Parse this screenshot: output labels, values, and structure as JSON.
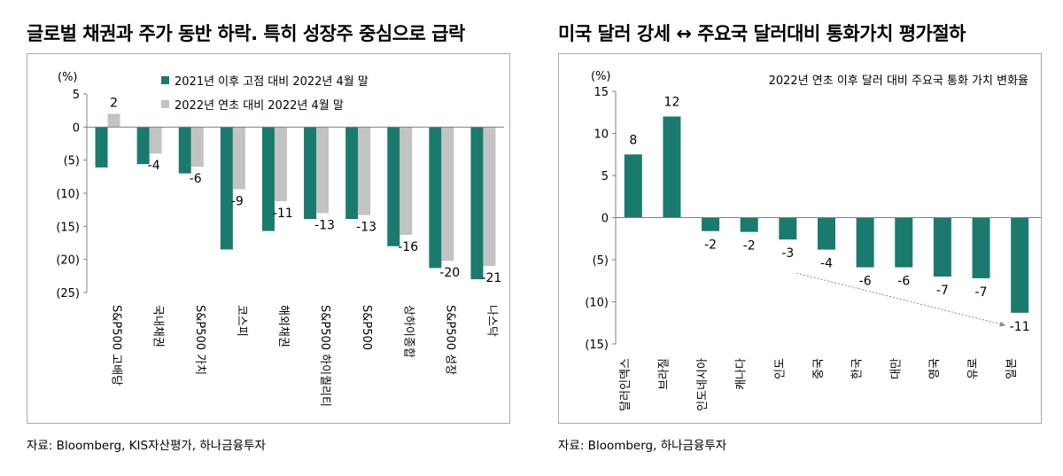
{
  "panels": [
    {
      "title": "글로벌 채권과 주가 동반 하락. 특히 성장주 중심으로 급락",
      "source": "자료: Bloomberg, KIS자산평가, 하나금융투자"
    },
    {
      "title": "미국 달러 강세 ↔ 주요국 달러대비 통화가치 평가절하",
      "source": "자료: Bloomberg, 하나금융투자"
    }
  ],
  "colors": {
    "teal": "#1b7a6e",
    "gray": "#c3c3c3",
    "axis": "#808080",
    "arrow": "#8c8c8c"
  },
  "chart_data": [
    {
      "type": "bar",
      "unit_label": "(%)",
      "ylim": [
        -25,
        5
      ],
      "yticks": [
        5,
        0,
        -5,
        -10,
        -15,
        -20,
        -25
      ],
      "ytick_labels": [
        "5",
        "0",
        "(5)",
        "(10)",
        "(15)",
        "(20)",
        "(25)"
      ],
      "categories": [
        "S&P500 고배당",
        "국내채권",
        "S&P500 가치",
        "코스피",
        "해외채권",
        "S&P500 하이퀄리티",
        "S&P500",
        "상하이종합",
        "S&P500 성장",
        "나스닥"
      ],
      "series": [
        {
          "name": "2021년 이후 고점 대비 2022년 4월 말",
          "color": "#1b7a6e",
          "values": [
            -6.1,
            -5.6,
            -7.0,
            -18.5,
            -15.7,
            -13.9,
            -13.9,
            -18.0,
            -21.3,
            -23.0
          ]
        },
        {
          "name": "2022년 연초 대비 2022년 4월 말",
          "color": "#c3c3c3",
          "values": [
            2,
            -4,
            -6,
            -9.4,
            -11.2,
            -13,
            -13.3,
            -16.3,
            -20.2,
            -21
          ]
        }
      ],
      "data_labels": [
        "2",
        "-4",
        "-6",
        "-9",
        "-11",
        "-13",
        "-13",
        "-16",
        "-20",
        "-21"
      ],
      "grid": false,
      "legend": "top"
    },
    {
      "type": "bar",
      "title": "2022년 연초 이후 달러 대비 주요국 통화 가치 변화율",
      "unit_label": "(%)",
      "ylim": [
        -15,
        15
      ],
      "yticks": [
        15,
        10,
        5,
        0,
        -5,
        -10,
        -15
      ],
      "ytick_labels": [
        "15",
        "10",
        "5",
        "0",
        "(5)",
        "(10)",
        "(15)"
      ],
      "categories": [
        "달러인덱스",
        "브라질",
        "인도네시아",
        "캐나다",
        "인도",
        "중국",
        "한국",
        "대만",
        "영국",
        "유로",
        "일본"
      ],
      "values": [
        7.5,
        12,
        -1.6,
        -1.7,
        -2.6,
        -3.8,
        -5.9,
        -5.9,
        -7.0,
        -7.2,
        -11.3
      ],
      "data_labels": [
        "8",
        "12",
        "-2",
        "-2",
        "-3",
        "-4",
        "-6",
        "-6",
        "-7",
        "-7",
        "-11"
      ],
      "annotation": "dotted arrow trending downward from 인도 to 일본",
      "grid": false
    }
  ]
}
